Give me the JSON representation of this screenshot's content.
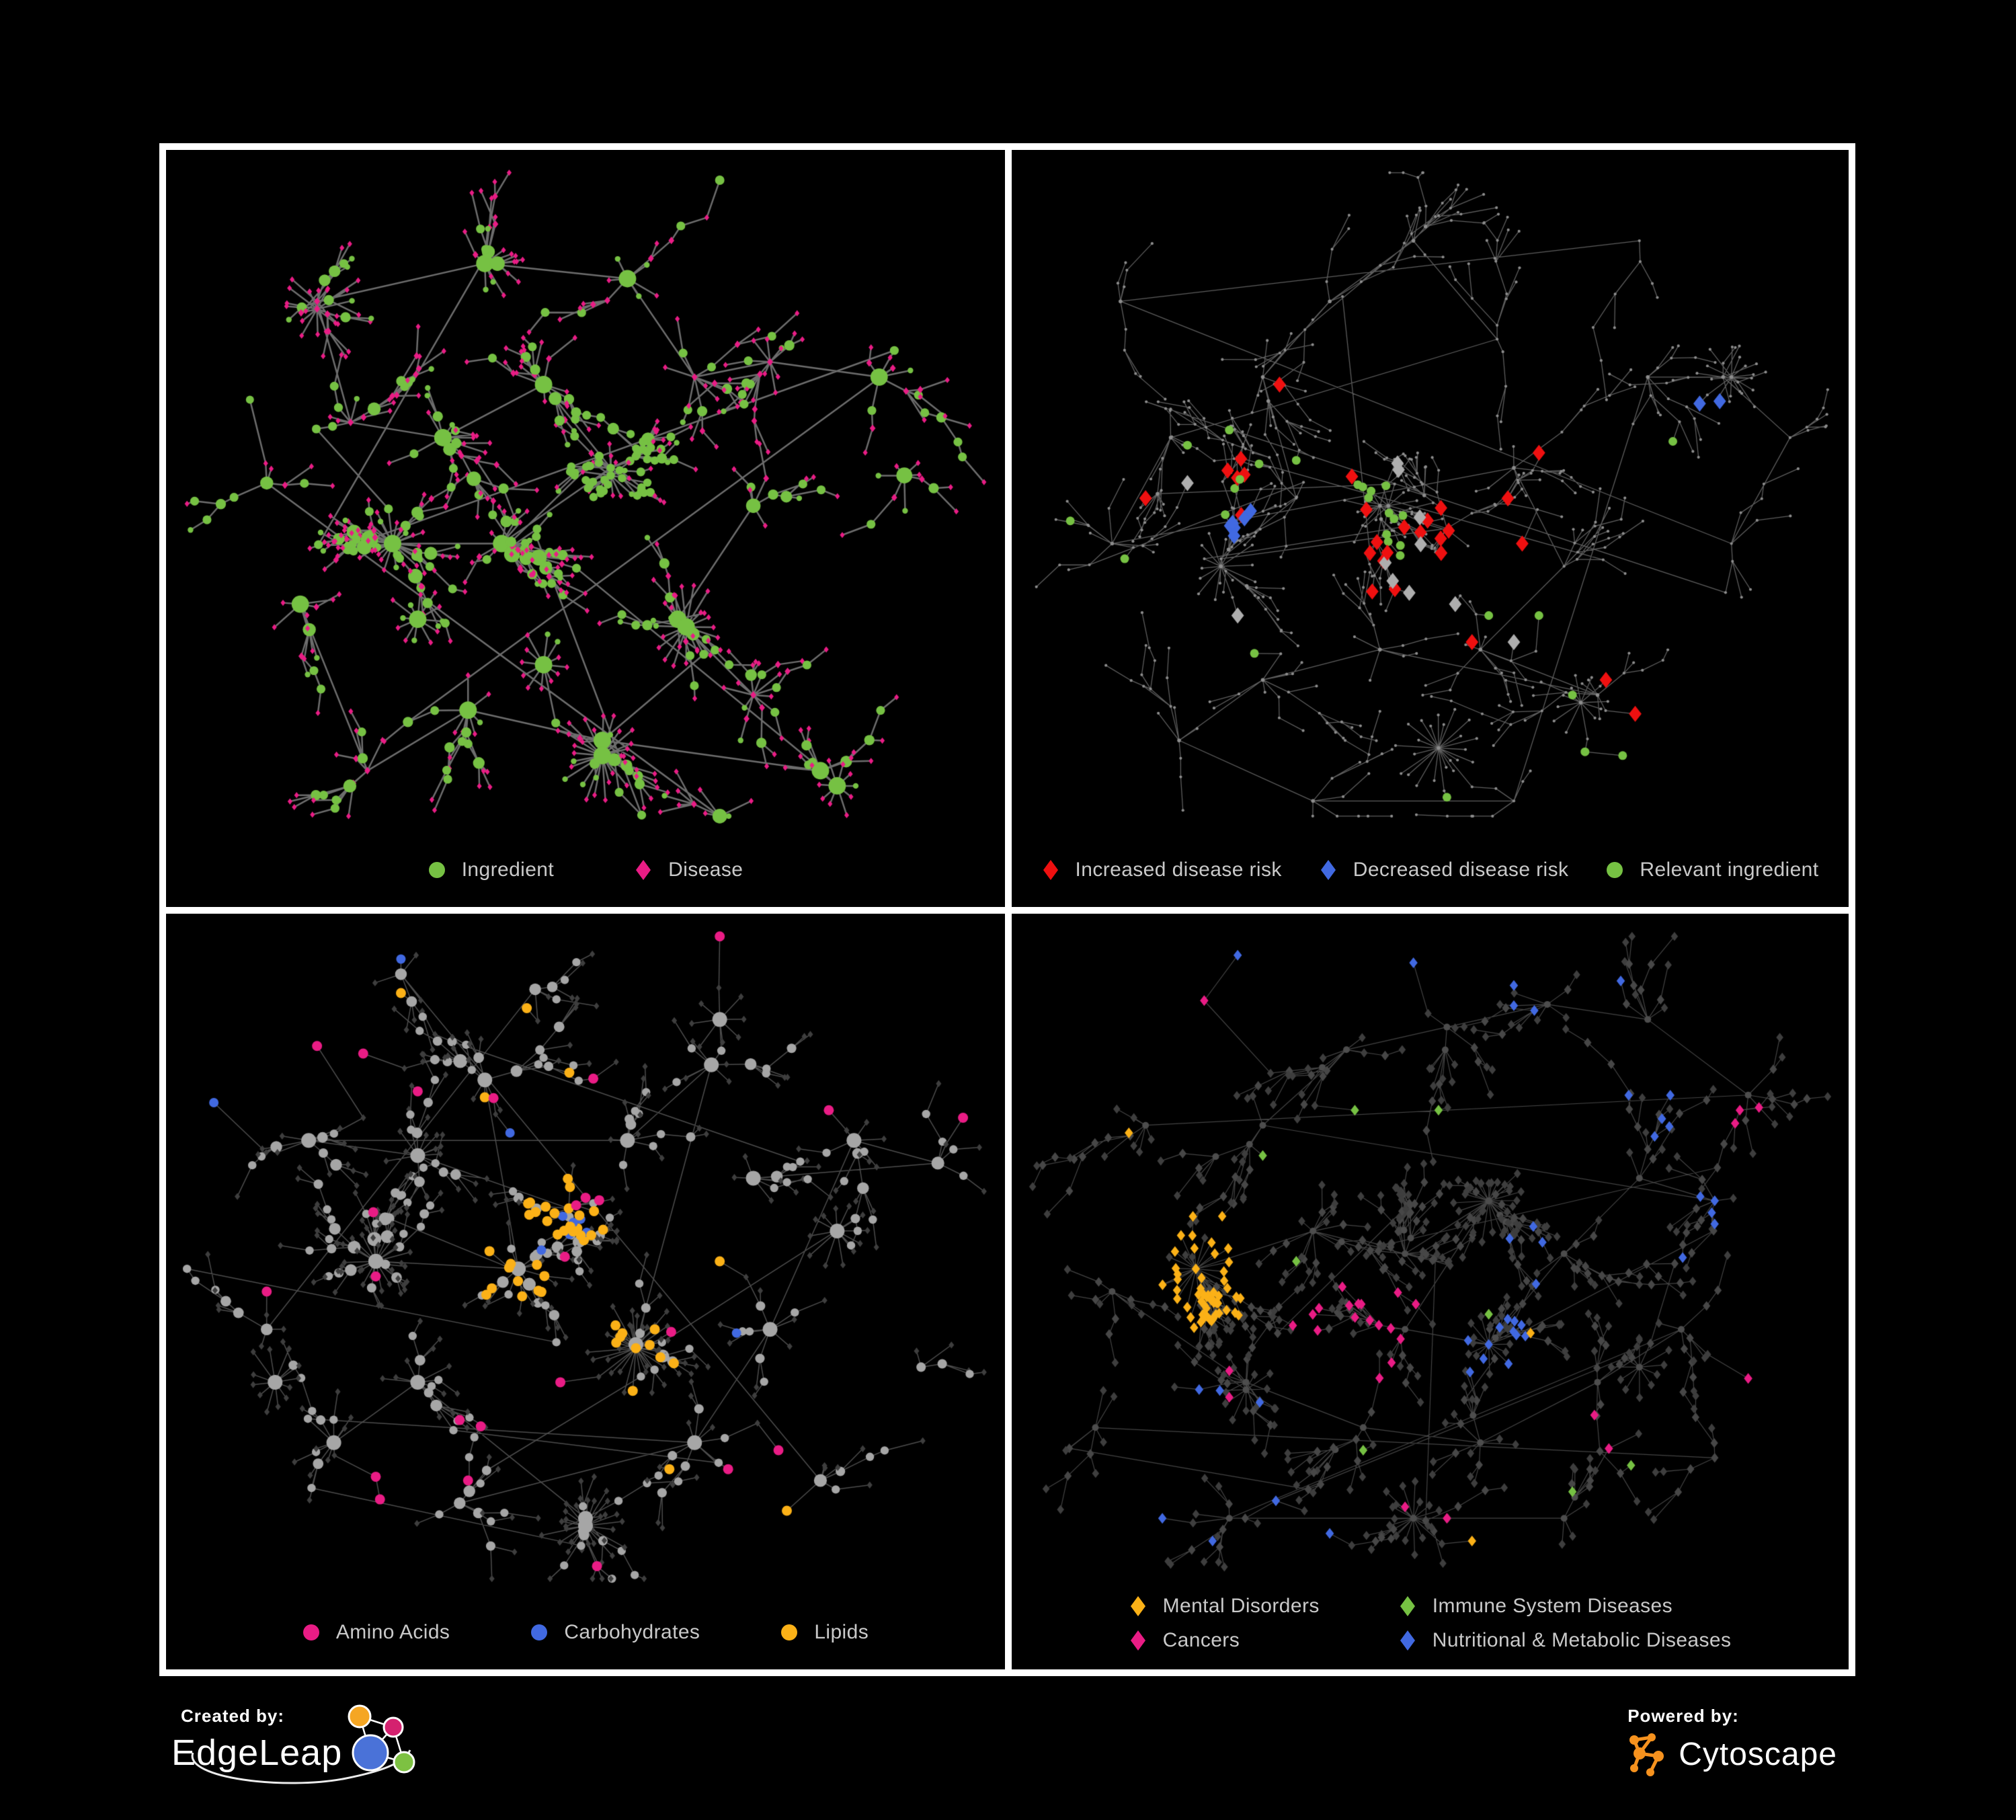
{
  "figure": {
    "background": "#000000",
    "frame_color": "#ffffff"
  },
  "palette": {
    "green": "#76c143",
    "magenta": "#e91c85",
    "red": "#ef1010",
    "blue": "#4169e1",
    "silver": "#aeaeae",
    "amber": "#fbb117",
    "node_gray": "#a6a6a6",
    "node_dark": "#3e3e3e",
    "node_dark2": "#474747",
    "dot_gray": "#8d8d8d",
    "hub_dark": "#4d4d4d",
    "edge_gray": "#7d7d7d",
    "legend_text": "#c9c9c9"
  },
  "panels": [
    {
      "name": "ingredient-disease-network",
      "legend": [
        {
          "shape": "circle",
          "color": "#76c143",
          "label": "Ingredient"
        },
        {
          "shape": "diamond",
          "color": "#e91c85",
          "label": "Disease"
        }
      ]
    },
    {
      "name": "disease-risk-network",
      "legend": [
        {
          "shape": "diamond",
          "color": "#ef1010",
          "label": "Increased disease risk"
        },
        {
          "shape": "diamond",
          "color": "#4169e1",
          "label": "Decreased disease risk"
        },
        {
          "shape": "circle",
          "color": "#76c143",
          "label": "Relevant ingredient"
        }
      ]
    },
    {
      "name": "nutrient-class-network",
      "legend": [
        {
          "shape": "circle",
          "color": "#e91c85",
          "label": "Amino Acids"
        },
        {
          "shape": "circle",
          "color": "#4169e1",
          "label": "Carbohydrates"
        },
        {
          "shape": "circle",
          "color": "#fbb117",
          "label": "Lipids"
        }
      ]
    },
    {
      "name": "disease-class-network",
      "legend": [
        {
          "shape": "diamond",
          "color": "#fbb117",
          "label": "Mental Disorders"
        },
        {
          "shape": "diamond",
          "color": "#76c143",
          "label": "Immune System Diseases"
        },
        {
          "shape": "diamond",
          "color": "#e91c85",
          "label": "Cancers"
        },
        {
          "shape": "diamond",
          "color": "#4169e1",
          "label": "Nutritional & Metabolic Diseases"
        }
      ]
    }
  ],
  "branding": {
    "created_by_label": "Created by:",
    "created_by_name": "EdgeLeap",
    "powered_by_label": "Powered by:",
    "powered_by_name": "Cytoscape",
    "edgeleap_colors": {
      "orange": "#f5a623",
      "magenta": "#d4216f",
      "blue": "#4a72d8",
      "green": "#7dc142"
    },
    "cytoscape_orange": "#f6921e"
  }
}
